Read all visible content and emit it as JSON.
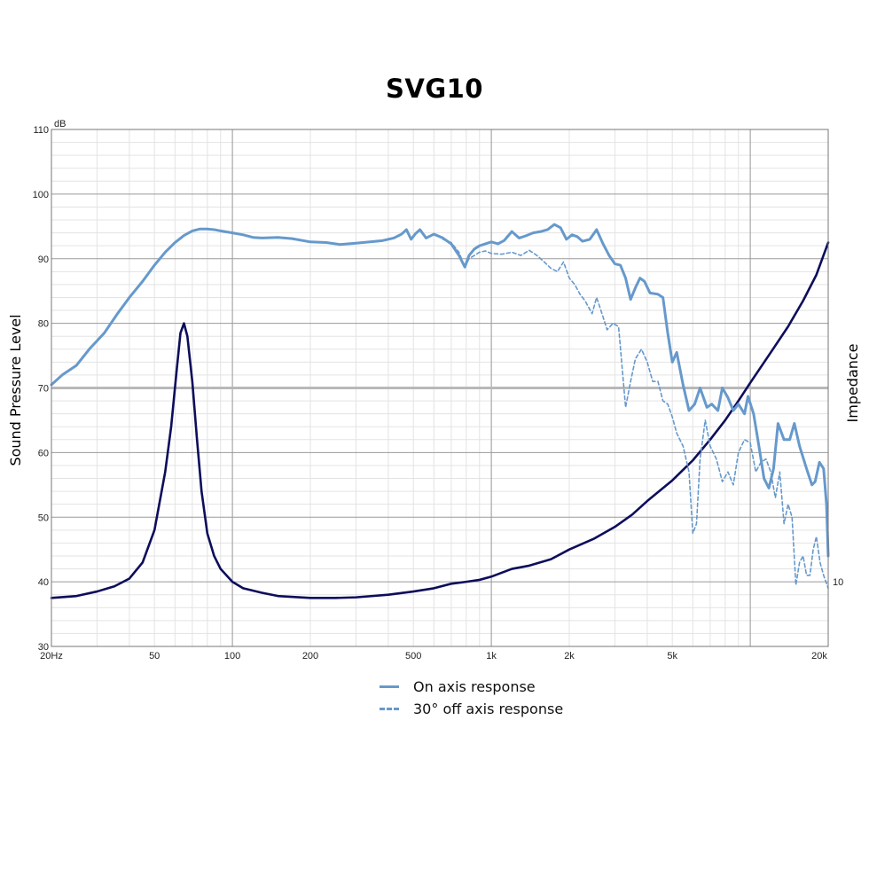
{
  "chart_data": {
    "type": "line",
    "title": "SVG10",
    "ylabel": "Sound Pressure Level",
    "y2label": "Impedance",
    "y_unit": "dB",
    "x_scale": "log",
    "xlim": [
      20,
      20000
    ],
    "ylim": [
      30,
      110
    ],
    "x_ticks": [
      {
        "value": 20,
        "label": "20Hz"
      },
      {
        "value": 50,
        "label": "50"
      },
      {
        "value": 100,
        "label": "100"
      },
      {
        "value": 200,
        "label": "200"
      },
      {
        "value": 500,
        "label": "500"
      },
      {
        "value": 1000,
        "label": "1k"
      },
      {
        "value": 2000,
        "label": "2k"
      },
      {
        "value": 5000,
        "label": "5k"
      },
      {
        "value": 20000,
        "label": "20k"
      }
    ],
    "y_ticks": [
      30,
      40,
      50,
      60,
      70,
      80,
      90,
      100,
      110
    ],
    "y2_ticks": [
      {
        "value": 40,
        "label": "10"
      }
    ],
    "grid": true,
    "legend_position": "bottom-center",
    "series": [
      {
        "name": "On axis response",
        "color": "#6699cc",
        "style": "solid",
        "points": [
          [
            20,
            70.5
          ],
          [
            22,
            72
          ],
          [
            25,
            73.5
          ],
          [
            28,
            76
          ],
          [
            32,
            78.5
          ],
          [
            36,
            81.5
          ],
          [
            40,
            84
          ],
          [
            45,
            86.5
          ],
          [
            50,
            89
          ],
          [
            55,
            91
          ],
          [
            60,
            92.5
          ],
          [
            65,
            93.6
          ],
          [
            70,
            94.3
          ],
          [
            75,
            94.6
          ],
          [
            80,
            94.6
          ],
          [
            85,
            94.5
          ],
          [
            90,
            94.3
          ],
          [
            100,
            94
          ],
          [
            110,
            93.7
          ],
          [
            120,
            93.3
          ],
          [
            130,
            93.2
          ],
          [
            150,
            93.3
          ],
          [
            170,
            93.1
          ],
          [
            200,
            92.6
          ],
          [
            230,
            92.5
          ],
          [
            260,
            92.2
          ],
          [
            300,
            92.4
          ],
          [
            340,
            92.6
          ],
          [
            380,
            92.8
          ],
          [
            420,
            93.2
          ],
          [
            450,
            93.8
          ],
          [
            470,
            94.5
          ],
          [
            490,
            93
          ],
          [
            510,
            93.9
          ],
          [
            530,
            94.5
          ],
          [
            560,
            93.2
          ],
          [
            600,
            93.8
          ],
          [
            650,
            93.2
          ],
          [
            700,
            92.3
          ],
          [
            750,
            90.5
          ],
          [
            790,
            88.7
          ],
          [
            820,
            90.5
          ],
          [
            860,
            91.5
          ],
          [
            900,
            92
          ],
          [
            950,
            92.3
          ],
          [
            1000,
            92.6
          ],
          [
            1060,
            92.3
          ],
          [
            1120,
            92.8
          ],
          [
            1200,
            94.2
          ],
          [
            1280,
            93.2
          ],
          [
            1350,
            93.5
          ],
          [
            1450,
            94
          ],
          [
            1550,
            94.2
          ],
          [
            1650,
            94.5
          ],
          [
            1750,
            95.3
          ],
          [
            1850,
            94.8
          ],
          [
            1950,
            93
          ],
          [
            2050,
            93.7
          ],
          [
            2150,
            93.4
          ],
          [
            2250,
            92.7
          ],
          [
            2400,
            93
          ],
          [
            2550,
            94.5
          ],
          [
            2700,
            92.3
          ],
          [
            2850,
            90.5
          ],
          [
            3000,
            89.2
          ],
          [
            3150,
            89
          ],
          [
            3300,
            87
          ],
          [
            3450,
            83.7
          ],
          [
            3600,
            85.5
          ],
          [
            3750,
            87
          ],
          [
            3900,
            86.5
          ],
          [
            4100,
            84.7
          ],
          [
            4400,
            84.5
          ],
          [
            4600,
            84
          ],
          [
            4800,
            78.5
          ],
          [
            5000,
            74
          ],
          [
            5200,
            75.5
          ],
          [
            5500,
            70.5
          ],
          [
            5800,
            66.5
          ],
          [
            6100,
            67.5
          ],
          [
            6400,
            70
          ],
          [
            6800,
            67
          ],
          [
            7100,
            67.5
          ],
          [
            7500,
            66.5
          ],
          [
            7800,
            70
          ],
          [
            8200,
            68.5
          ],
          [
            8600,
            66.5
          ],
          [
            9000,
            67.5
          ],
          [
            9500,
            66
          ],
          [
            9800,
            68.7
          ],
          [
            10300,
            66
          ],
          [
            10800,
            61
          ],
          [
            11300,
            56
          ],
          [
            11800,
            54.5
          ],
          [
            12300,
            57.5
          ],
          [
            12800,
            64.5
          ],
          [
            13500,
            62
          ],
          [
            14200,
            62
          ],
          [
            14800,
            64.5
          ],
          [
            15500,
            61
          ],
          [
            16500,
            57.5
          ],
          [
            17300,
            55
          ],
          [
            17800,
            55.5
          ],
          [
            18500,
            58.5
          ],
          [
            19200,
            57.5
          ],
          [
            19700,
            52
          ],
          [
            20000,
            44
          ]
        ]
      },
      {
        "name": "30° off axis response",
        "color": "#6699cc",
        "style": "dashed",
        "points": [
          [
            650,
            93
          ],
          [
            700,
            92.5
          ],
          [
            750,
            91
          ],
          [
            790,
            88.7
          ],
          [
            820,
            90
          ],
          [
            860,
            90.5
          ],
          [
            900,
            91
          ],
          [
            950,
            91.2
          ],
          [
            1000,
            90.8
          ],
          [
            1100,
            90.7
          ],
          [
            1200,
            91
          ],
          [
            1300,
            90.5
          ],
          [
            1400,
            91.3
          ],
          [
            1500,
            90.5
          ],
          [
            1600,
            89.5
          ],
          [
            1700,
            88.5
          ],
          [
            1800,
            88
          ],
          [
            1900,
            89.5
          ],
          [
            2000,
            87
          ],
          [
            2100,
            86
          ],
          [
            2200,
            84.5
          ],
          [
            2300,
            83.5
          ],
          [
            2450,
            81.5
          ],
          [
            2550,
            84
          ],
          [
            2650,
            82
          ],
          [
            2800,
            79
          ],
          [
            2950,
            80
          ],
          [
            3100,
            79.5
          ],
          [
            3300,
            67
          ],
          [
            3450,
            71
          ],
          [
            3600,
            74.5
          ],
          [
            3800,
            76
          ],
          [
            4000,
            74
          ],
          [
            4200,
            71
          ],
          [
            4400,
            71
          ],
          [
            4600,
            68
          ],
          [
            4800,
            67.5
          ],
          [
            5000,
            65.5
          ],
          [
            5200,
            63
          ],
          [
            5500,
            61
          ],
          [
            5800,
            57
          ],
          [
            6000,
            47.5
          ],
          [
            6200,
            49
          ],
          [
            6400,
            59
          ],
          [
            6700,
            65
          ],
          [
            7000,
            61
          ],
          [
            7400,
            59
          ],
          [
            7800,
            55.5
          ],
          [
            8200,
            57
          ],
          [
            8600,
            55
          ],
          [
            9000,
            60
          ],
          [
            9500,
            62
          ],
          [
            10000,
            61.5
          ],
          [
            10500,
            57
          ],
          [
            11000,
            58.5
          ],
          [
            11500,
            59
          ],
          [
            12000,
            57
          ],
          [
            12500,
            53
          ],
          [
            13000,
            57
          ],
          [
            13500,
            49
          ],
          [
            14000,
            52
          ],
          [
            14500,
            50
          ],
          [
            15000,
            39.5
          ],
          [
            15500,
            43
          ],
          [
            16000,
            44
          ],
          [
            16500,
            41
          ],
          [
            17000,
            41
          ],
          [
            17500,
            45
          ],
          [
            18000,
            47
          ],
          [
            18600,
            43
          ],
          [
            19200,
            41
          ],
          [
            20000,
            39
          ]
        ]
      },
      {
        "name": "Impedance",
        "color": "#0d0d5c",
        "style": "solid",
        "points": [
          [
            20,
            37.5
          ],
          [
            25,
            37.8
          ],
          [
            30,
            38.5
          ],
          [
            35,
            39.3
          ],
          [
            40,
            40.5
          ],
          [
            45,
            43
          ],
          [
            50,
            48
          ],
          [
            55,
            57
          ],
          [
            58,
            64
          ],
          [
            61,
            73
          ],
          [
            63,
            78.5
          ],
          [
            65,
            80
          ],
          [
            67,
            78
          ],
          [
            70,
            71
          ],
          [
            73,
            62
          ],
          [
            76,
            54
          ],
          [
            80,
            47.5
          ],
          [
            85,
            44
          ],
          [
            90,
            42
          ],
          [
            100,
            40
          ],
          [
            110,
            39
          ],
          [
            130,
            38.3
          ],
          [
            150,
            37.8
          ],
          [
            200,
            37.5
          ],
          [
            250,
            37.5
          ],
          [
            300,
            37.6
          ],
          [
            400,
            38
          ],
          [
            500,
            38.5
          ],
          [
            600,
            39
          ],
          [
            700,
            39.7
          ],
          [
            800,
            40
          ],
          [
            900,
            40.3
          ],
          [
            1000,
            40.8
          ],
          [
            1200,
            42
          ],
          [
            1400,
            42.5
          ],
          [
            1700,
            43.5
          ],
          [
            2000,
            45
          ],
          [
            2500,
            46.7
          ],
          [
            3000,
            48.5
          ],
          [
            3500,
            50.4
          ],
          [
            4000,
            52.5
          ],
          [
            5000,
            55.7
          ],
          [
            6000,
            58.8
          ],
          [
            7000,
            62
          ],
          [
            8000,
            65
          ],
          [
            9000,
            68
          ],
          [
            10000,
            70.8
          ],
          [
            12000,
            75.5
          ],
          [
            14000,
            79.5
          ],
          [
            16000,
            83.5
          ],
          [
            18000,
            87.5
          ],
          [
            20000,
            92.5
          ]
        ]
      }
    ]
  }
}
